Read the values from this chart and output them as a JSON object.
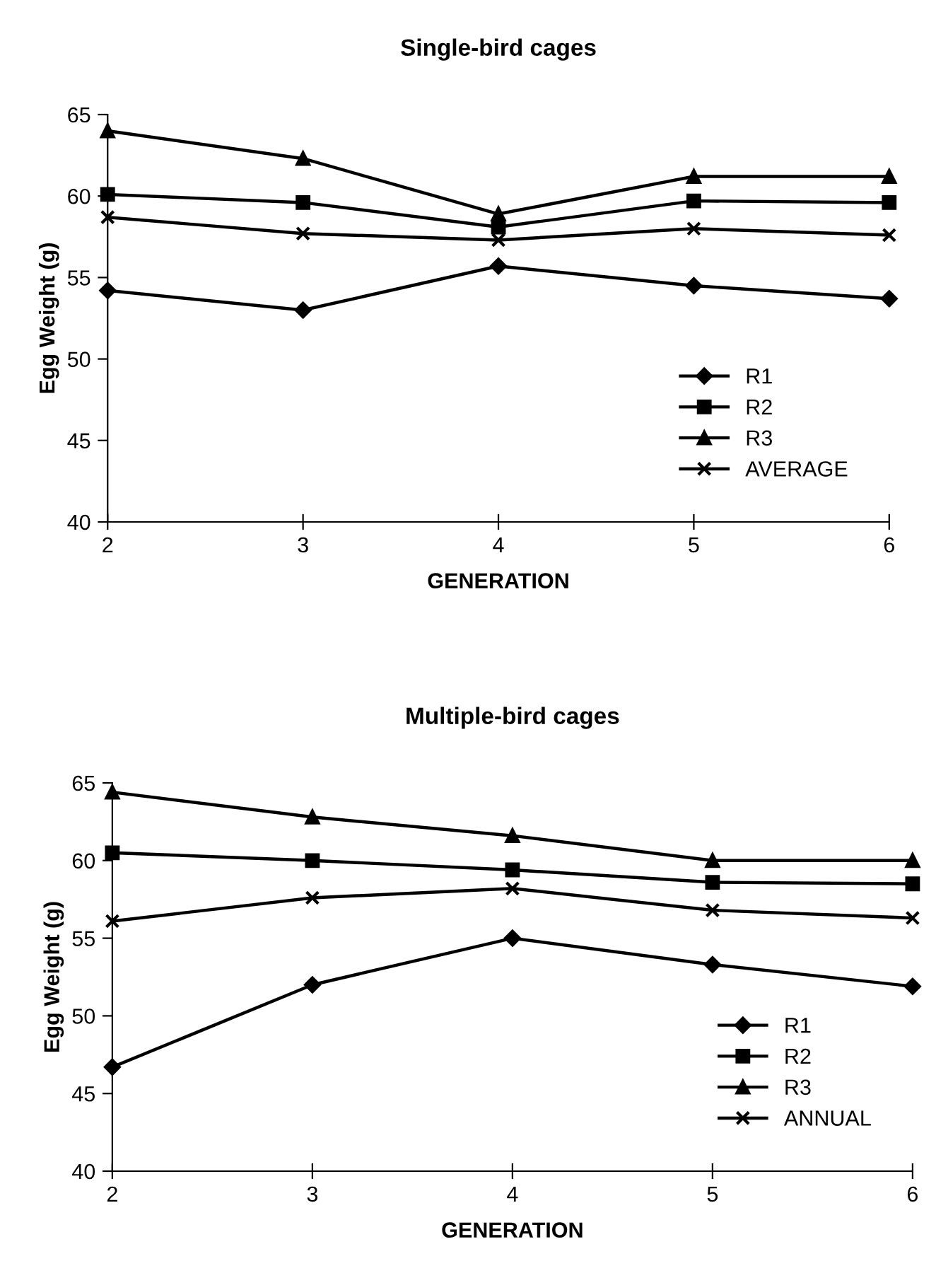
{
  "chart_data": [
    {
      "type": "line",
      "title": "Single-bird cages",
      "xlabel": "GENERATION",
      "ylabel": "Egg Weight (g)",
      "x": [
        2,
        3,
        4,
        5,
        6
      ],
      "xlim": [
        2,
        6
      ],
      "xticks": [
        2,
        3,
        4,
        5,
        6
      ],
      "ylim": [
        40,
        65
      ],
      "yticks": [
        40,
        45,
        50,
        55,
        60,
        65
      ],
      "grid": false,
      "legend": "bottom right",
      "series": [
        {
          "name": "R1",
          "color": "#000000",
          "marker": "diamond",
          "values": [
            54.2,
            53.0,
            55.7,
            54.5,
            53.7
          ]
        },
        {
          "name": "R2",
          "color": "#000000",
          "marker": "square",
          "values": [
            60.1,
            59.6,
            58.1,
            59.7,
            59.6
          ]
        },
        {
          "name": "R3",
          "color": "#000000",
          "marker": "triangle",
          "values": [
            64.0,
            62.3,
            58.9,
            61.2,
            61.2
          ]
        },
        {
          "name": "AVERAGE",
          "color": "#000000",
          "marker": "cross",
          "values": [
            58.7,
            57.7,
            57.3,
            58.0,
            57.6
          ]
        }
      ]
    },
    {
      "type": "line",
      "title": "Multiple-bird cages",
      "xlabel": "GENERATION",
      "ylabel": "Egg Weight (g)",
      "x": [
        2,
        3,
        4,
        5,
        6
      ],
      "xlim": [
        2,
        6
      ],
      "xticks": [
        2,
        3,
        4,
        5,
        6
      ],
      "ylim": [
        40,
        65
      ],
      "yticks": [
        40,
        45,
        50,
        55,
        60,
        65
      ],
      "grid": false,
      "legend": "bottom right",
      "series": [
        {
          "name": "R1",
          "color": "#000000",
          "marker": "diamond",
          "values": [
            46.7,
            52.0,
            55.0,
            53.3,
            51.9
          ]
        },
        {
          "name": "R2",
          "color": "#000000",
          "marker": "square",
          "values": [
            60.5,
            60.0,
            59.4,
            58.6,
            58.5
          ]
        },
        {
          "name": "R3",
          "color": "#000000",
          "marker": "triangle",
          "values": [
            64.4,
            62.8,
            61.6,
            60.0,
            60.0
          ]
        },
        {
          "name": "ANNUAL",
          "color": "#000000",
          "marker": "cross",
          "values": [
            56.1,
            57.6,
            58.2,
            56.8,
            56.3
          ]
        }
      ]
    }
  ]
}
